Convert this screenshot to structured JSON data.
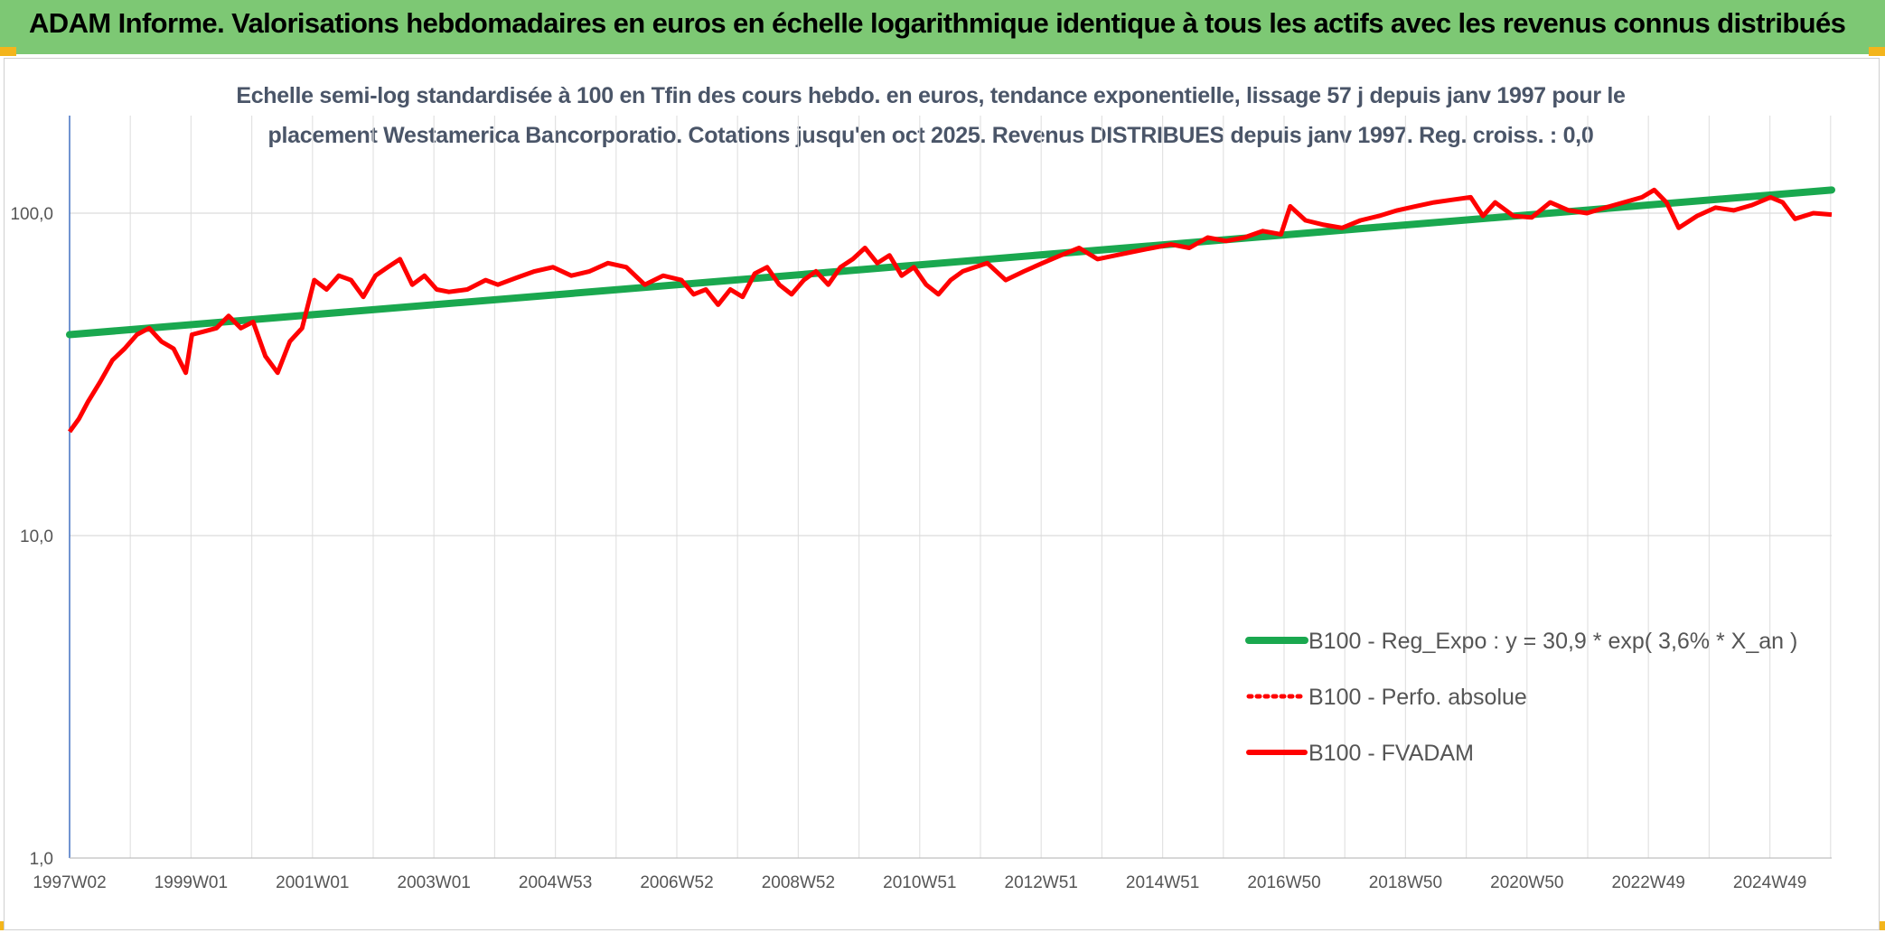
{
  "header": {
    "title": "ADAM Informe. Valorisations hebdomadaires en euros en échelle logarithmique identique à tous les actifs avec les revenus connus distribués"
  },
  "chart_data": {
    "type": "line",
    "subtitle_line1": "Echelle semi-log standardisée à 100 en Tfin des cours hebdo. en euros, tendance exponentielle, lissage 57 j depuis janv 1997 pour le",
    "subtitle_line2": "placement Westamerica Bancorporatio. Cotations jusqu'en oct 2025. Revenus DISTRIBUES depuis janv 1997. Reg. croiss. : 0,0",
    "y_scale": "log",
    "ylim": [
      1,
      200
    ],
    "grid": true,
    "legend_position": "bottom-right",
    "y_ticks": [
      "1,0",
      "10,0",
      "100,0"
    ],
    "x_ticks": [
      "1997W02",
      "1999W01",
      "2001W01",
      "2003W01",
      "2004W53",
      "2006W52",
      "2008W52",
      "2010W51",
      "2012W51",
      "2014W51",
      "2016W50",
      "2018W50",
      "2020W50",
      "2022W49",
      "2024W49"
    ],
    "x_range_years": [
      1997.0,
      2025.8
    ],
    "series": [
      {
        "name": "B100 - Reg_Expo : y = 30,9 * exp( 3,6% *  X_an )",
        "color": "#1aa84f",
        "style": "solid-thick",
        "x": [
          1997.0,
          2025.8
        ],
        "y": [
          42,
          118
        ]
      },
      {
        "name": "B100 - Perfo. absolue",
        "color": "#ff0000",
        "style": "dotted",
        "x": [],
        "y": []
      },
      {
        "name": "B100 - FVADAM",
        "color": "#ff0000",
        "style": "solid",
        "x": [
          1997.0,
          1997.15,
          1997.3,
          1997.5,
          1997.7,
          1997.9,
          1998.1,
          1998.3,
          1998.5,
          1998.7,
          1998.9,
          1999.0,
          1999.2,
          1999.4,
          1999.6,
          1999.8,
          2000.0,
          2000.2,
          2000.4,
          2000.6,
          2000.8,
          2001.0,
          2001.2,
          2001.4,
          2001.6,
          2001.8,
          2002.0,
          2002.2,
          2002.4,
          2002.6,
          2002.8,
          2003.0,
          2003.2,
          2003.5,
          2003.8,
          2004.0,
          2004.3,
          2004.6,
          2004.9,
          2005.2,
          2005.5,
          2005.8,
          2006.1,
          2006.4,
          2006.7,
          2007.0,
          2007.2,
          2007.4,
          2007.6,
          2007.8,
          2008.0,
          2008.2,
          2008.4,
          2008.6,
          2008.8,
          2009.0,
          2009.2,
          2009.4,
          2009.6,
          2009.8,
          2010.0,
          2010.2,
          2010.4,
          2010.6,
          2010.8,
          2011.0,
          2011.2,
          2011.4,
          2011.6,
          2011.8,
          2012.0,
          2012.3,
          2012.6,
          2012.9,
          2013.2,
          2013.5,
          2013.8,
          2014.1,
          2014.4,
          2014.7,
          2015.0,
          2015.3,
          2015.6,
          2015.9,
          2016.2,
          2016.5,
          2016.8,
          2016.95,
          2017.2,
          2017.5,
          2017.8,
          2018.1,
          2018.4,
          2018.7,
          2019.0,
          2019.3,
          2019.6,
          2019.9,
          2020.1,
          2020.3,
          2020.6,
          2020.9,
          2021.2,
          2021.5,
          2021.8,
          2022.1,
          2022.4,
          2022.7,
          2022.9,
          2023.1,
          2023.3,
          2023.6,
          2023.9,
          2024.2,
          2024.5,
          2024.8,
          2025.0,
          2025.2,
          2025.5,
          2025.8
        ],
        "y": [
          21,
          23,
          26,
          30,
          35,
          38,
          42,
          44,
          40,
          38,
          32,
          42,
          43,
          44,
          48,
          44,
          46,
          36,
          32,
          40,
          44,
          62,
          58,
          64,
          62,
          55,
          64,
          68,
          72,
          60,
          64,
          58,
          57,
          58,
          62,
          60,
          63,
          66,
          68,
          64,
          66,
          70,
          68,
          60,
          64,
          62,
          56,
          58,
          52,
          58,
          55,
          65,
          68,
          60,
          56,
          62,
          66,
          60,
          68,
          72,
          78,
          70,
          74,
          64,
          68,
          60,
          56,
          62,
          66,
          68,
          70,
          62,
          66,
          70,
          74,
          78,
          72,
          74,
          76,
          78,
          80,
          78,
          84,
          82,
          84,
          88,
          86,
          105,
          95,
          92,
          90,
          95,
          98,
          102,
          105,
          108,
          110,
          112,
          98,
          108,
          98,
          97,
          108,
          102,
          100,
          104,
          108,
          112,
          118,
          108,
          90,
          98,
          104,
          102,
          106,
          112,
          108,
          96,
          100,
          99
        ]
      }
    ]
  }
}
